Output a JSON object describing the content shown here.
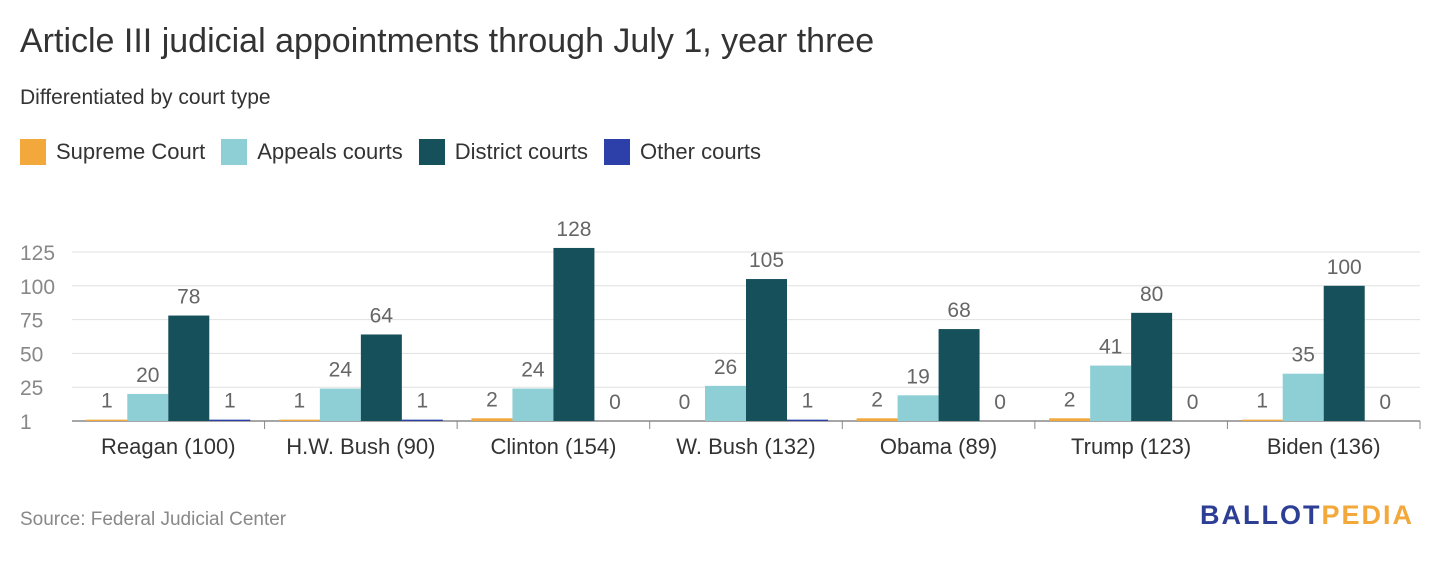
{
  "title": "Article III judicial appointments through July 1, year three",
  "subtitle": "Differentiated by court type",
  "source": "Source: Federal Judicial Center",
  "logo": {
    "part1": "BALLOT",
    "part2": "PEDIA"
  },
  "colors": {
    "supreme": "#f3a83b",
    "appeals": "#8ecfd6",
    "district": "#16505b",
    "other": "#2d3fa8",
    "grid": "#e0e0e0",
    "axis": "#888888",
    "label": "#666666"
  },
  "chart_data": {
    "type": "bar",
    "title": "Article III judicial appointments through July 1, year three",
    "subtitle": "Differentiated by court type",
    "categories": [
      "Reagan (100)",
      "H.W. Bush (90)",
      "Clinton (154)",
      "W. Bush (132)",
      "Obama (89)",
      "Trump (123)",
      "Biden (136)"
    ],
    "series": [
      {
        "name": "Supreme Court",
        "color": "#f3a83b",
        "values": [
          1,
          1,
          2,
          0,
          2,
          2,
          1
        ]
      },
      {
        "name": "Appeals courts",
        "color": "#8ecfd6",
        "values": [
          20,
          24,
          24,
          26,
          19,
          41,
          35
        ]
      },
      {
        "name": "District courts",
        "color": "#16505b",
        "values": [
          78,
          64,
          128,
          105,
          68,
          80,
          100
        ]
      },
      {
        "name": "Other courts",
        "color": "#2d3fa8",
        "values": [
          1,
          1,
          0,
          1,
          0,
          0,
          0
        ]
      }
    ],
    "yticks": [
      1,
      25,
      50,
      75,
      100,
      125
    ],
    "ylim": [
      0,
      125
    ],
    "grid": true,
    "legend": "top-left",
    "xlabel": "",
    "ylabel": ""
  }
}
